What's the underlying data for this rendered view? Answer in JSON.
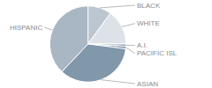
{
  "chart_data": {
    "type": "pie",
    "categories": [
      "BLACK",
      "WHITE",
      "A.I.",
      "PACIFIC ISL",
      "ASIAN",
      "HISPANIC"
    ],
    "values": [
      10,
      15,
      1,
      1,
      35,
      38
    ],
    "colors": [
      "#bcc6d0",
      "#dde2e8",
      "#8fa2b4",
      "#6f859a",
      "#8197aa",
      "#a9b6c3"
    ]
  }
}
